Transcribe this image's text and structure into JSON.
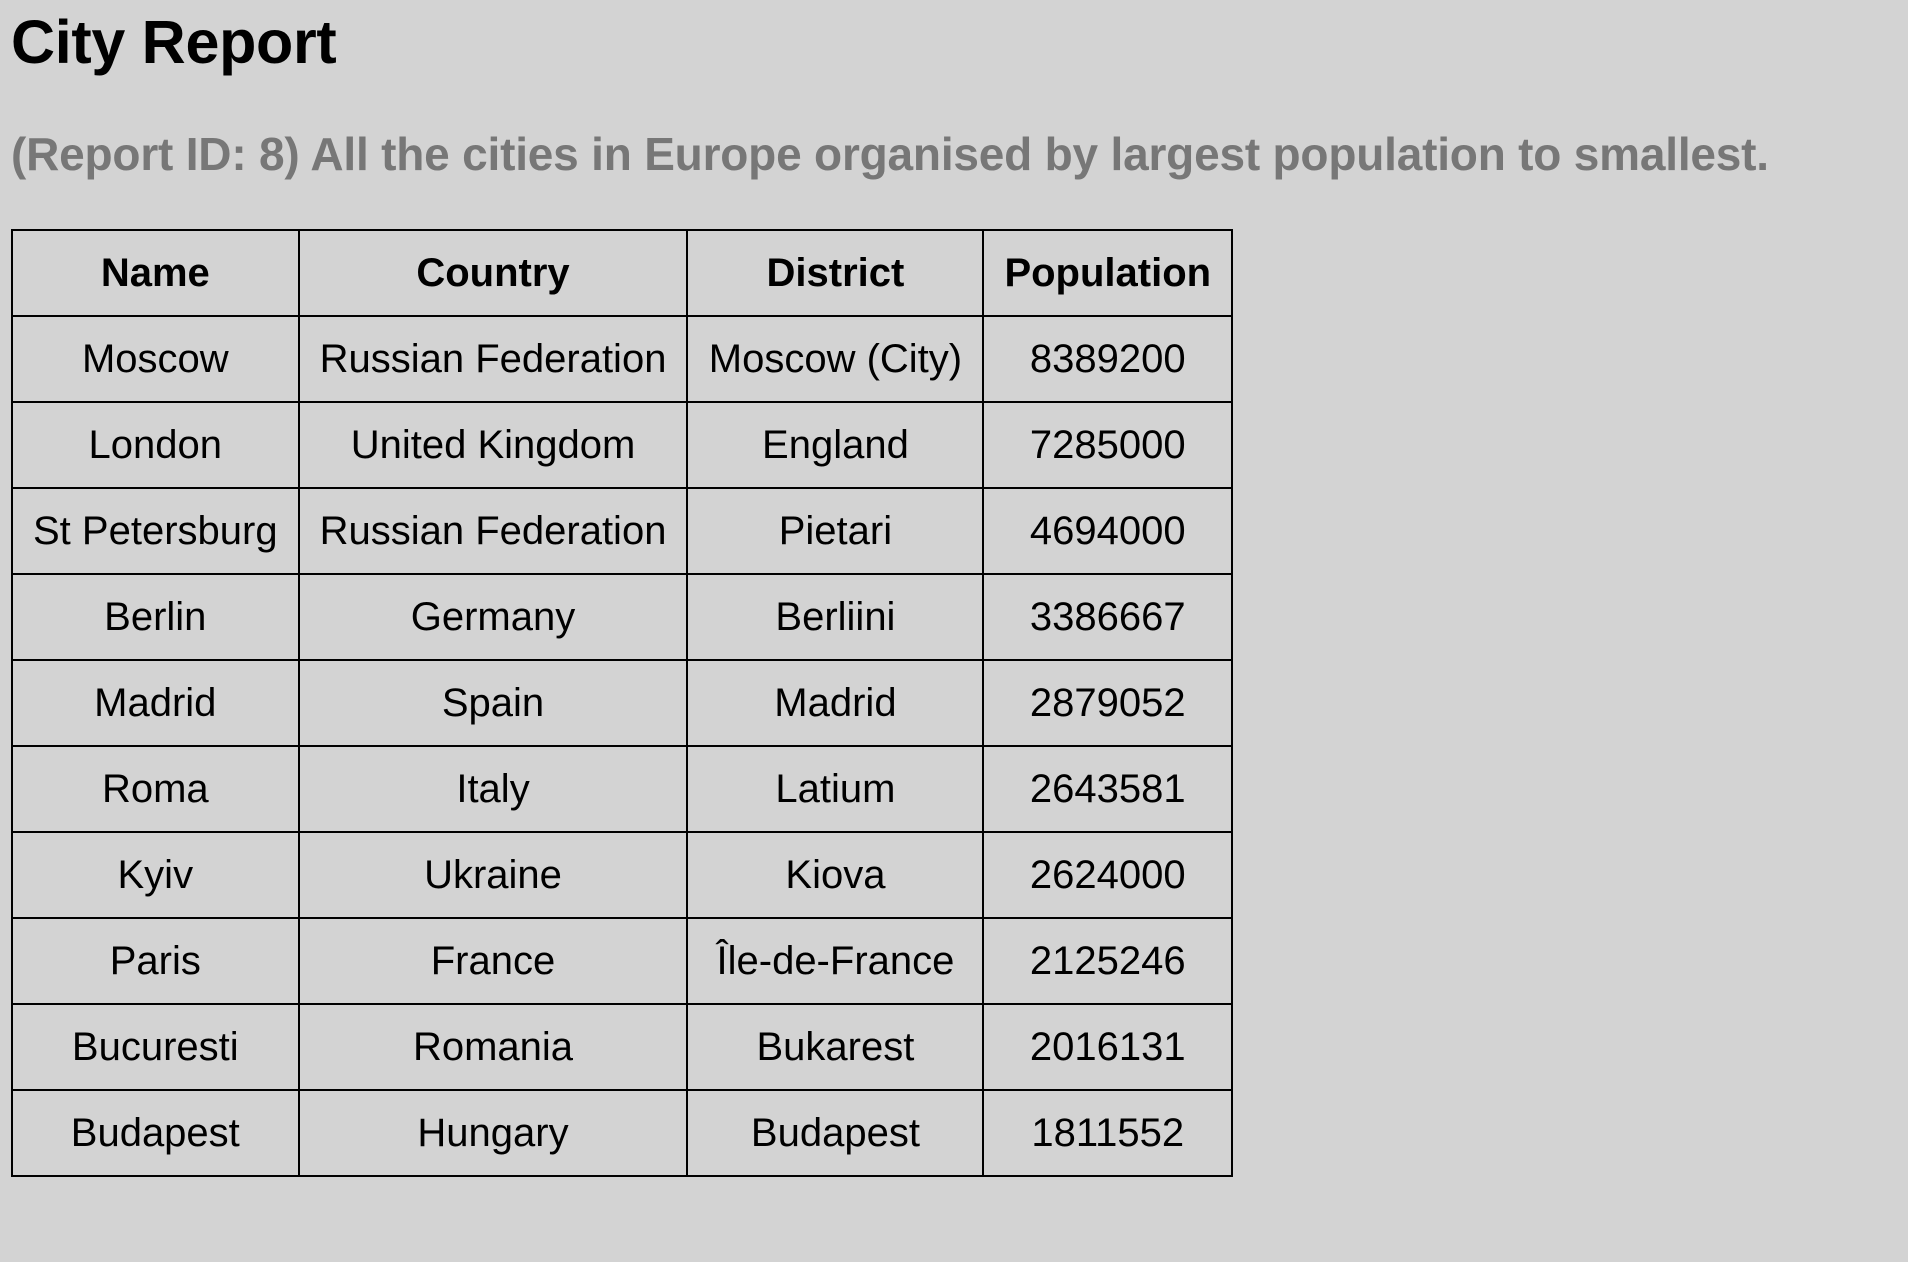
{
  "report": {
    "title": "City Report",
    "subtitle": "(Report ID: 8) All the cities in Europe organised by largest population to smallest."
  },
  "table": {
    "headers": [
      "Name",
      "Country",
      "District",
      "Population"
    ],
    "rows": [
      [
        "Moscow",
        "Russian Federation",
        "Moscow (City)",
        "8389200"
      ],
      [
        "London",
        "United Kingdom",
        "England",
        "7285000"
      ],
      [
        "St Petersburg",
        "Russian Federation",
        "Pietari",
        "4694000"
      ],
      [
        "Berlin",
        "Germany",
        "Berliini",
        "3386667"
      ],
      [
        "Madrid",
        "Spain",
        "Madrid",
        "2879052"
      ],
      [
        "Roma",
        "Italy",
        "Latium",
        "2643581"
      ],
      [
        "Kyiv",
        "Ukraine",
        "Kiova",
        "2624000"
      ],
      [
        "Paris",
        "France",
        "Île-de-France",
        "2125246"
      ],
      [
        "Bucuresti",
        "Romania",
        "Bukarest",
        "2016131"
      ],
      [
        "Budapest",
        "Hungary",
        "Budapest",
        "1811552"
      ]
    ]
  }
}
